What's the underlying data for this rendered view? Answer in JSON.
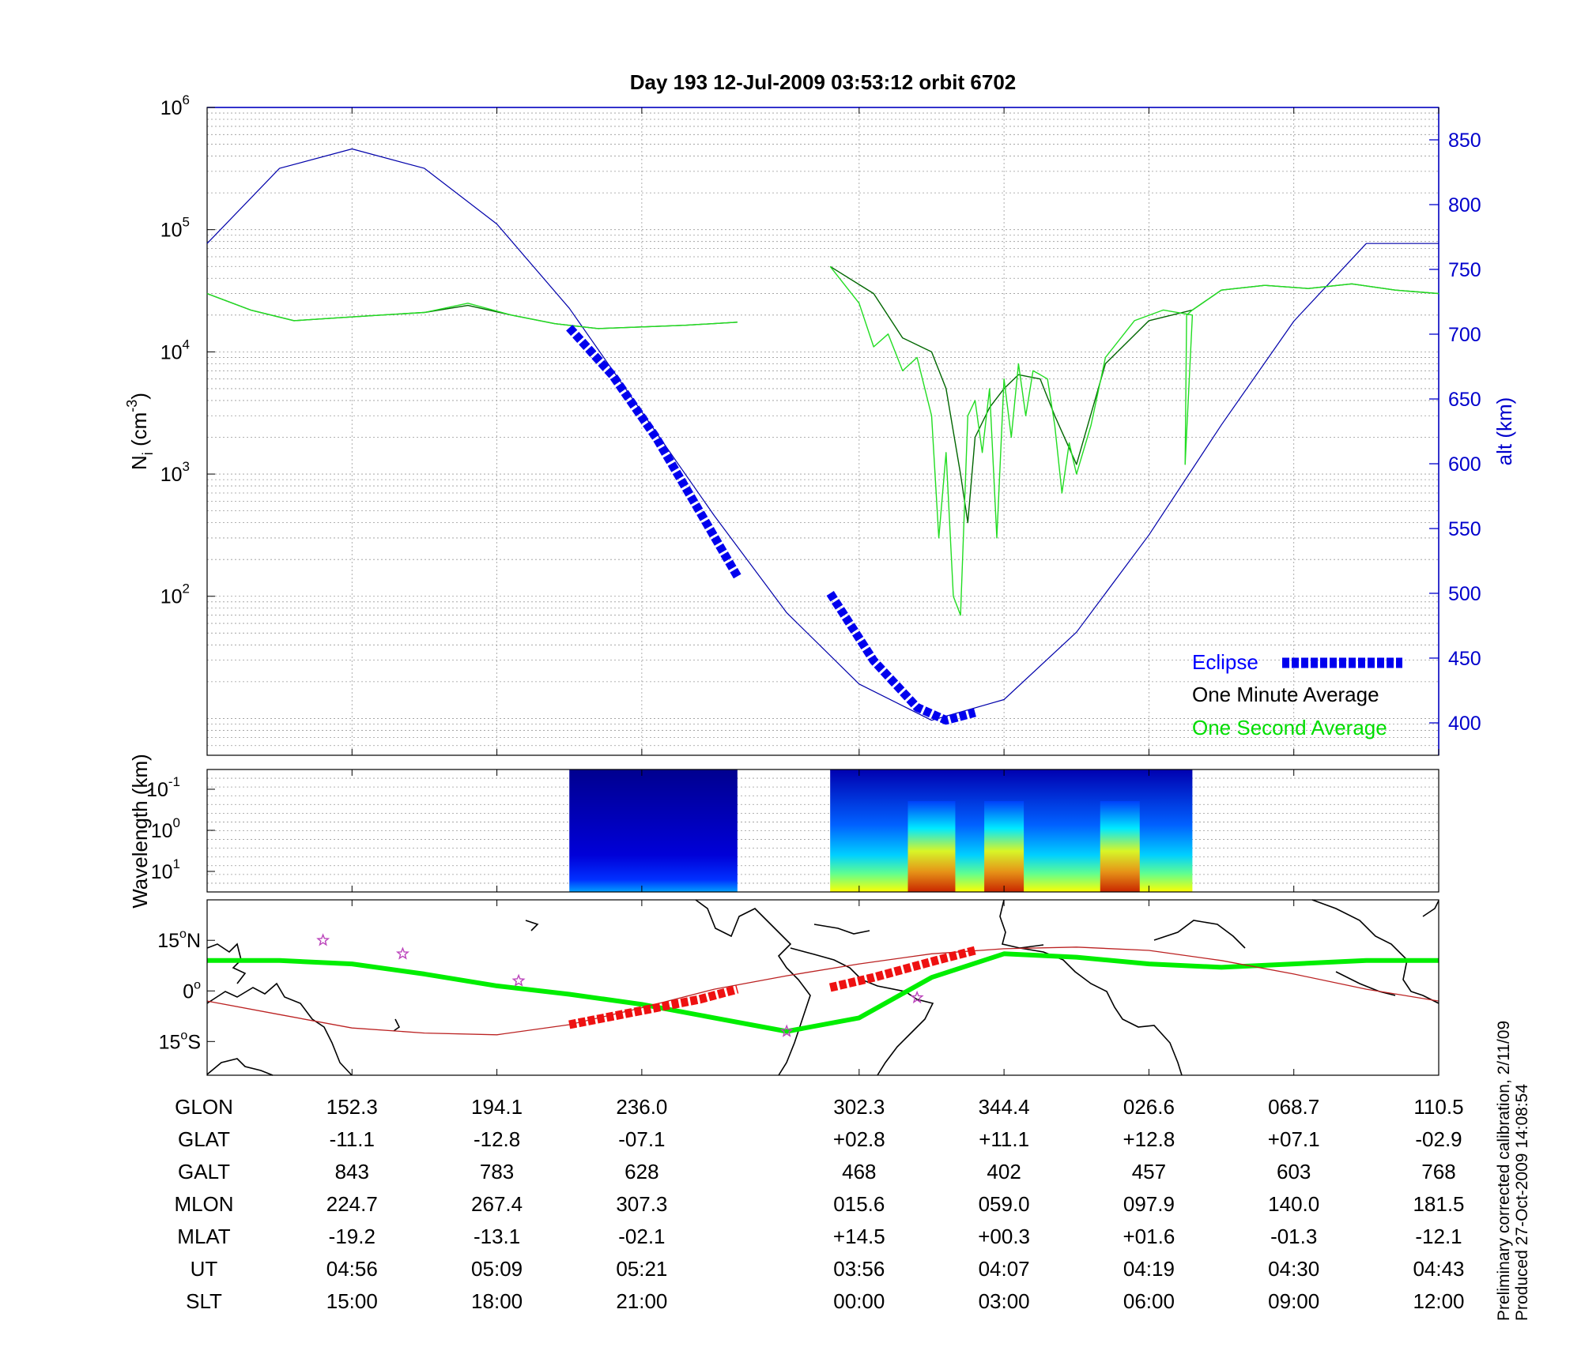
{
  "chart_data": [
    {
      "type": "line",
      "title": "Day 193  12-Jul-2009 03:53:12   orbit 6702",
      "ylabel_left": "Ni (cm-3)",
      "ylabel_left_main": "N",
      "ylabel_left_sub": "i",
      "ylabel_left_unit_open": " (cm",
      "ylabel_left_unit_sup": "-3",
      "ylabel_left_unit_close": ")",
      "ylabel_right": "alt (km)",
      "y_left_scale": "log",
      "y_left_range": [
        5,
        1000000
      ],
      "y_left_ticks": [
        {
          "value": 100,
          "base": "10",
          "exp": "2"
        },
        {
          "value": 1000,
          "base": "10",
          "exp": "3"
        },
        {
          "value": 10000,
          "base": "10",
          "exp": "4"
        },
        {
          "value": 100000,
          "base": "10",
          "exp": "5"
        },
        {
          "value": 1000000,
          "base": "10",
          "exp": "6"
        }
      ],
      "y_right_range": [
        375,
        875
      ],
      "y_right_ticks": [
        "400",
        "450",
        "500",
        "550",
        "600",
        "650",
        "700",
        "750",
        "800",
        "850"
      ],
      "x_range": [
        0,
        8.5
      ],
      "legend_placement": "bottom-right",
      "legend": [
        {
          "label": "Eclipse",
          "color": "#0000ff",
          "style": "thick-dash"
        },
        {
          "label": "One Minute Average",
          "color": "#000000",
          "style": "line"
        },
        {
          "label": "One Second Average",
          "color": "#00dd00",
          "style": "line"
        }
      ],
      "series": [
        {
          "name": "Altitude (km)",
          "axis": "right",
          "color": "#0000aa",
          "x": [
            0,
            0.5,
            1,
            1.5,
            2,
            2.5,
            3,
            3.5,
            4,
            4.5,
            5,
            5.5,
            6,
            6.5,
            7,
            7.5,
            8,
            8.5
          ],
          "y": [
            770,
            828,
            843,
            828,
            785,
            720,
            640,
            560,
            485,
            430,
            402,
            418,
            470,
            545,
            630,
            710,
            770,
            770
          ]
        },
        {
          "name": "One Minute Average",
          "axis": "left",
          "color": "#006600",
          "segments": [
            {
              "x": [
                0,
                0.3,
                0.6,
                0.9,
                1.2,
                1.5,
                1.8,
                2.1,
                2.4,
                2.7,
                3.0,
                3.3,
                3.66
              ],
              "y": [
                30000,
                22000,
                18000,
                19000,
                20000,
                21000,
                24000,
                20000,
                17000,
                15500,
                16000,
                16500,
                17500
              ]
            },
            {
              "x": [
                4.3,
                4.6,
                4.8,
                5.0,
                5.1,
                5.2,
                5.25,
                5.3,
                5.4,
                5.5,
                5.6,
                5.75,
                5.85,
                6.0,
                6.2,
                6.5,
                6.8,
                7.0,
                7.3,
                7.6,
                7.9,
                8.2,
                8.5
              ],
              "y": [
                50000,
                30000,
                13000,
                10000,
                5000,
                1000,
                400,
                2000,
                3500,
                5000,
                6500,
                6000,
                3000,
                1200,
                8000,
                18000,
                22000,
                32000,
                35000,
                33000,
                36000,
                32000,
                30000
              ]
            }
          ]
        },
        {
          "name": "One Second Average",
          "axis": "left",
          "color": "#22dd22",
          "segments": [
            {
              "x": [
                0,
                0.3,
                0.6,
                0.9,
                1.2,
                1.5,
                1.8,
                2.1,
                2.4,
                2.7,
                3.0,
                3.3,
                3.66
              ],
              "y": [
                30000,
                22000,
                18000,
                19000,
                20000,
                21000,
                25000,
                20000,
                17000,
                15500,
                16000,
                16500,
                17500
              ]
            },
            {
              "x": [
                4.3,
                4.5,
                4.6,
                4.7,
                4.8,
                4.9,
                5.0,
                5.05,
                5.1,
                5.15,
                5.2,
                5.25,
                5.3,
                5.35,
                5.4,
                5.45,
                5.5,
                5.55,
                5.6,
                5.65,
                5.7,
                5.75,
                5.8,
                5.85,
                5.9,
                5.95,
                6.0,
                6.1,
                6.2,
                6.4,
                6.6,
                6.8,
                6.75,
                6.76,
                6.8,
                7.0,
                7.3,
                7.6,
                7.9,
                8.2,
                8.5
              ],
              "y": [
                50000,
                25000,
                11000,
                14000,
                7000,
                9000,
                3000,
                300,
                1500,
                100,
                70,
                3000,
                4000,
                1500,
                5000,
                300,
                6000,
                2000,
                8000,
                3000,
                7000,
                6500,
                6000,
                2500,
                700,
                1800,
                1000,
                2500,
                9000,
                18000,
                22000,
                20000,
                1200,
                20000,
                22000,
                32000,
                35000,
                33000,
                36000,
                32000,
                30000
              ]
            }
          ]
        },
        {
          "name": "Eclipse",
          "axis": "right",
          "color": "#0000ee",
          "segments": [
            {
              "x": [
                2.5,
                2.8,
                3.1,
                3.4,
                3.66
              ],
              "y": [
                705,
                668,
                620,
                563,
                513
              ]
            },
            {
              "x": [
                4.3,
                4.6,
                4.9,
                5.1,
                5.3
              ],
              "y": [
                500,
                448,
                412,
                402,
                408
              ]
            }
          ]
        }
      ]
    },
    {
      "type": "heatmap",
      "ylabel": "Wavelength (km)",
      "y_scale": "log",
      "y_ticks": [
        {
          "base": "10",
          "exp": "-1"
        },
        {
          "base": "10",
          "exp": "0"
        },
        {
          "base": "10",
          "exp": "1"
        }
      ],
      "x_range": [
        0,
        8.5
      ],
      "blocks": [
        {
          "x_start": 2.5,
          "x_end": 3.66,
          "intensity": "low"
        },
        {
          "x_start": 4.3,
          "x_end": 6.8,
          "intensity": "high",
          "peak_x": [
            5.0,
            5.5,
            6.3
          ]
        }
      ],
      "colormap": [
        "#00008f",
        "#0000ff",
        "#00a0ff",
        "#00ffff",
        "#ffff00",
        "#ff8000",
        "#c00000"
      ]
    },
    {
      "type": "line",
      "panel": "map",
      "y_ticks": [
        {
          "value": 15,
          "label": "15",
          "unit": "N"
        },
        {
          "value": 0,
          "label": "0",
          "unit": ""
        },
        {
          "value": -15,
          "label": "15",
          "unit": "S"
        }
      ],
      "y_range": [
        -25,
        27
      ],
      "x_range": [
        0,
        8.5
      ],
      "series": [
        {
          "name": "magnetic equator",
          "color": "#00ee00",
          "x": [
            0,
            0.5,
            1,
            1.5,
            2,
            2.5,
            3,
            3.5,
            4,
            4.5,
            5,
            5.5,
            6,
            6.5,
            7,
            7.5,
            8,
            8.5
          ],
          "y": [
            9,
            9,
            8,
            5,
            1.5,
            -1,
            -4,
            -8,
            -12,
            -8,
            4,
            11,
            10,
            8,
            7,
            8,
            9,
            9
          ]
        },
        {
          "name": "orbit track",
          "color": "#bb2222",
          "x": [
            0,
            0.5,
            1,
            1.5,
            2,
            2.5,
            3,
            3.5,
            4,
            4.5,
            5,
            5.5,
            6,
            6.5,
            7,
            7.5,
            8,
            8.5
          ],
          "y": [
            -3,
            -7,
            -11,
            -12.5,
            -13,
            -10,
            -5,
            0.5,
            4.5,
            8,
            11,
            12.5,
            13,
            12,
            9,
            5,
            0.5,
            -3
          ]
        },
        {
          "name": "eclipse track",
          "color": "#ee1111",
          "segments": [
            {
              "x": [
                2.5,
                2.8,
                3.1,
                3.4,
                3.66
              ],
              "y": [
                -10,
                -7.5,
                -5,
                -2.5,
                0.5
              ]
            },
            {
              "x": [
                4.3,
                4.6,
                4.9,
                5.1,
                5.3
              ],
              "y": [
                1,
                4,
                7.5,
                9.8,
                12
              ]
            }
          ]
        }
      ],
      "markers": [
        {
          "x": 0.8,
          "y": 15,
          "color": "#bb44bb"
        },
        {
          "x": 1.35,
          "y": 11,
          "color": "#bb44bb"
        },
        {
          "x": 2.15,
          "y": 3,
          "color": "#bb44bb"
        },
        {
          "x": 4.9,
          "y": -2,
          "color": "#bb44bb"
        },
        {
          "x": 4.0,
          "y": -12,
          "color": "#bb44bb"
        }
      ]
    }
  ],
  "ephemeris": {
    "row_labels": [
      "GLON",
      "GLAT",
      "GALT",
      "MLON",
      "MLAT",
      "UT",
      "SLT"
    ],
    "columns": [
      {
        "x": 1,
        "values": [
          "152.3",
          "-11.1",
          "843",
          "224.7",
          "-19.2",
          "04:56",
          "15:00"
        ]
      },
      {
        "x": 2,
        "values": [
          "194.1",
          "-12.8",
          "783",
          "267.4",
          "-13.1",
          "05:09",
          "18:00"
        ]
      },
      {
        "x": 3,
        "values": [
          "236.0",
          "-07.1",
          "628",
          "307.3",
          "-02.1",
          "05:21",
          "21:00"
        ]
      },
      {
        "x": 4.5,
        "values": [
          "302.3",
          "+02.8",
          "468",
          "015.6",
          "+14.5",
          "03:56",
          "00:00"
        ]
      },
      {
        "x": 5.5,
        "values": [
          "344.4",
          "+11.1",
          "402",
          "059.0",
          "+00.3",
          "04:07",
          "03:00"
        ]
      },
      {
        "x": 6.5,
        "values": [
          "026.6",
          "+12.8",
          "457",
          "097.9",
          "+01.6",
          "04:19",
          "06:00"
        ]
      },
      {
        "x": 7.5,
        "values": [
          "068.7",
          "+07.1",
          "603",
          "140.0",
          "-01.3",
          "04:30",
          "09:00"
        ]
      },
      {
        "x": 8.5,
        "values": [
          "110.5",
          "-02.9",
          "768",
          "181.5",
          "-12.1",
          "04:43",
          "12:00"
        ]
      }
    ]
  },
  "footnote_line1": "Preliminary corrected calibration, 2/11/09",
  "footnote_line2": "Produced 27-Oct-2009 14:08:54"
}
